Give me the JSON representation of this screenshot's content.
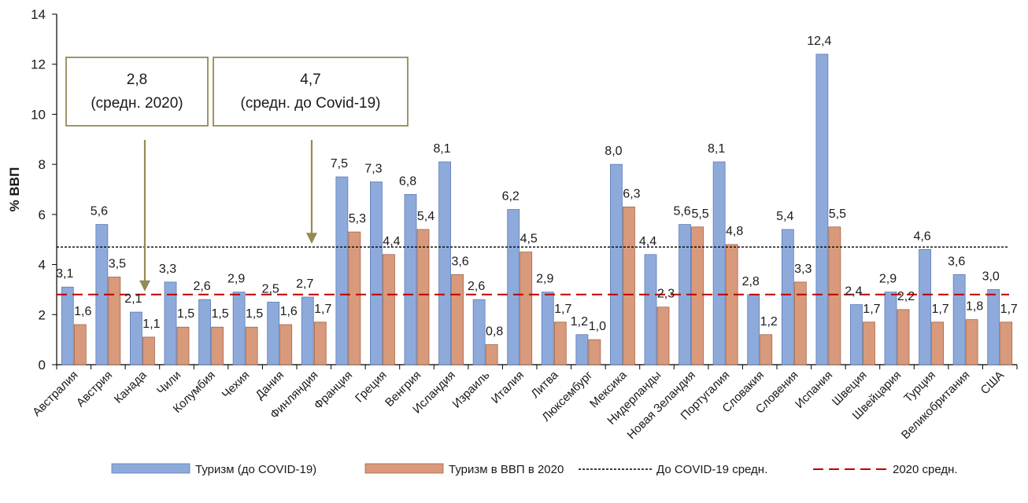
{
  "chart_data": {
    "type": "bar",
    "ylabel": "% ВВП",
    "ylim": [
      0,
      14
    ],
    "yticks": [
      0,
      2,
      4,
      6,
      8,
      10,
      12,
      14
    ],
    "categories": [
      "Австралия",
      "Австрия",
      "Канада",
      "Чили",
      "Колумбия",
      "Чехия",
      "Дания",
      "Финляндия",
      "Франция",
      "Греция",
      "Венгрия",
      "Исландия",
      "Израиль",
      "Италия",
      "Литва",
      "Люксембург",
      "Мексика",
      "Нидерланды",
      "Новая Зеландия",
      "Португалия",
      "Словакия",
      "Словения",
      "Испания",
      "Швеция",
      "Швейцария",
      "Турция",
      "Великобритания",
      "США"
    ],
    "series": [
      {
        "name": "Туризм (до COVID-19)",
        "color": "#8eaadb",
        "values": [
          3.1,
          5.6,
          2.1,
          3.3,
          2.6,
          2.9,
          2.5,
          2.7,
          7.5,
          7.3,
          6.8,
          8.1,
          2.6,
          6.2,
          2.9,
          1.2,
          8.0,
          4.4,
          5.6,
          8.1,
          2.8,
          5.4,
          12.4,
          2.4,
          2.9,
          4.6,
          3.6,
          3.0
        ],
        "labels": [
          "3,1",
          "5,6",
          "2,1",
          "3,3",
          "2,6",
          "2,9",
          "2,5",
          "2,7",
          "7,5",
          "7,3",
          "6,8",
          "8,1",
          "2,6",
          "6,2",
          "2,9",
          "1,2",
          "8,0",
          "4,4",
          "5,6",
          "8,1",
          "2,8",
          "5,4",
          "12,4",
          "2,4",
          "2,9",
          "4,6",
          "3,6",
          "3,0"
        ]
      },
      {
        "name": "Туризм в ВВП в 2020",
        "color": "#d99a7c",
        "values": [
          1.6,
          3.5,
          1.1,
          1.5,
          1.5,
          1.5,
          1.6,
          1.7,
          5.3,
          4.4,
          5.4,
          3.6,
          0.8,
          4.5,
          1.7,
          1.0,
          6.3,
          2.3,
          5.5,
          4.8,
          1.2,
          3.3,
          5.5,
          1.7,
          2.2,
          1.7,
          1.8,
          1.7
        ],
        "labels": [
          "1,6",
          "3,5",
          "1,1",
          "1,5",
          "1,5",
          "1,5",
          "1,6",
          "1,7",
          "5,3",
          "4,4",
          "5,4",
          "3,6",
          "0,8",
          "4,5",
          "1,7",
          "1,0",
          "6,3",
          "2,3",
          "5,5",
          "4,8",
          "1,2",
          "3,3",
          "5,5",
          "1,7",
          "2,2",
          "1,7",
          "1,8",
          "1,7"
        ]
      }
    ],
    "reference_lines": [
      {
        "name": "До COVID-19 средн.",
        "value": 4.7,
        "style": "dotted",
        "color": "#000000"
      },
      {
        "name": "2020 средн.",
        "value": 2.8,
        "style": "dashed",
        "color": "#c00000"
      }
    ],
    "annotations": [
      {
        "value_text": "2,8",
        "sub_text": "(средн. 2020)",
        "arrow_to": 2.8
      },
      {
        "value_text": "4,7",
        "sub_text": "(средн. до Covid-19)",
        "arrow_to": 4.7
      }
    ],
    "annotation_color": "#948a54",
    "legend_placement": "bottom",
    "grid": false
  }
}
